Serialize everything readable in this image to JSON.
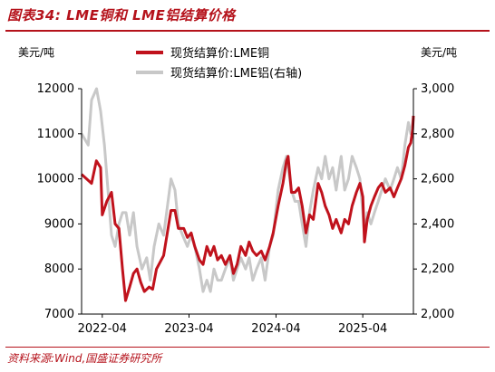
{
  "figure": {
    "title": "图表34:  LME铜和 LME铝结算价格",
    "source": "资料来源:Wind,国盛证券研究所"
  },
  "colors": {
    "copper": "#c0121c",
    "aluminum": "#c8c8c8",
    "accent": "#b5121b"
  },
  "chart_data": {
    "type": "line",
    "ylabel_left": "美元/吨",
    "ylabel_right": "美元/吨",
    "x_ticks": [
      "2022-04",
      "2023-04",
      "2024-04",
      "2025-04"
    ],
    "xlim": [
      "2022-01-04",
      "2025-10-31"
    ],
    "ylim_left": [
      7000,
      12000
    ],
    "yticks_left": [
      "7000",
      "8000",
      "9000",
      "10000",
      "11000",
      "12000"
    ],
    "ylim_right": [
      2000,
      3000
    ],
    "yticks_right": [
      "2,000",
      "2,200",
      "2,400",
      "2,600",
      "2,800",
      "3,000"
    ],
    "legend_position": "top",
    "series": [
      {
        "name": "现货结算价:LME铜",
        "axis": "left",
        "color": "#c0121c",
        "points": [
          [
            "2022-01-04",
            10100
          ],
          [
            "2022-02-15",
            9900
          ],
          [
            "2022-03-07",
            10400
          ],
          [
            "2022-03-25",
            10250
          ],
          [
            "2022-04-01",
            9200
          ],
          [
            "2022-04-20",
            9500
          ],
          [
            "2022-05-10",
            9700
          ],
          [
            "2022-05-25",
            9000
          ],
          [
            "2022-06-10",
            8900
          ],
          [
            "2022-06-25",
            8000
          ],
          [
            "2022-07-08",
            7300
          ],
          [
            "2022-07-25",
            7600
          ],
          [
            "2022-08-10",
            7900
          ],
          [
            "2022-08-25",
            8000
          ],
          [
            "2022-09-10",
            7700
          ],
          [
            "2022-09-25",
            7500
          ],
          [
            "2022-10-15",
            7600
          ],
          [
            "2022-10-30",
            7550
          ],
          [
            "2022-11-15",
            8000
          ],
          [
            "2022-12-15",
            8300
          ],
          [
            "2023-01-15",
            9300
          ],
          [
            "2023-02-01",
            9300
          ],
          [
            "2023-02-15",
            8900
          ],
          [
            "2023-03-10",
            8900
          ],
          [
            "2023-03-25",
            8700
          ],
          [
            "2023-04-10",
            8800
          ],
          [
            "2023-04-25",
            8500
          ],
          [
            "2023-05-15",
            8200
          ],
          [
            "2023-05-30",
            8100
          ],
          [
            "2023-06-15",
            8500
          ],
          [
            "2023-06-30",
            8300
          ],
          [
            "2023-07-15",
            8500
          ],
          [
            "2023-07-30",
            8200
          ],
          [
            "2023-08-15",
            8300
          ],
          [
            "2023-09-01",
            8100
          ],
          [
            "2023-09-20",
            8300
          ],
          [
            "2023-10-05",
            7900
          ],
          [
            "2023-10-20",
            8100
          ],
          [
            "2023-11-05",
            8500
          ],
          [
            "2023-11-25",
            8300
          ],
          [
            "2023-12-10",
            8600
          ],
          [
            "2023-12-25",
            8400
          ],
          [
            "2024-01-10",
            8300
          ],
          [
            "2024-01-30",
            8400
          ],
          [
            "2024-02-15",
            8200
          ],
          [
            "2024-03-05",
            8500
          ],
          [
            "2024-03-20",
            8800
          ],
          [
            "2024-04-10",
            9400
          ],
          [
            "2024-04-30",
            9900
          ],
          [
            "2024-05-15",
            10400
          ],
          [
            "2024-05-22",
            10500
          ],
          [
            "2024-06-05",
            9700
          ],
          [
            "2024-06-20",
            9700
          ],
          [
            "2024-07-05",
            9800
          ],
          [
            "2024-07-20",
            9400
          ],
          [
            "2024-08-05",
            8800
          ],
          [
            "2024-08-20",
            9200
          ],
          [
            "2024-09-05",
            9100
          ],
          [
            "2024-09-25",
            9900
          ],
          [
            "2024-10-10",
            9700
          ],
          [
            "2024-10-25",
            9400
          ],
          [
            "2024-11-10",
            9200
          ],
          [
            "2024-11-25",
            8900
          ],
          [
            "2024-12-10",
            9100
          ],
          [
            "2024-12-31",
            8800
          ],
          [
            "2025-01-15",
            9100
          ],
          [
            "2025-01-31",
            9000
          ],
          [
            "2025-02-15",
            9400
          ],
          [
            "2025-03-05",
            9700
          ],
          [
            "2025-03-20",
            9900
          ],
          [
            "2025-04-01",
            9600
          ],
          [
            "2025-04-08",
            8600
          ],
          [
            "2025-04-20",
            9100
          ],
          [
            "2025-05-05",
            9400
          ],
          [
            "2025-05-20",
            9600
          ],
          [
            "2025-06-05",
            9800
          ],
          [
            "2025-06-20",
            9900
          ],
          [
            "2025-07-05",
            9700
          ],
          [
            "2025-07-25",
            9800
          ],
          [
            "2025-08-10",
            9600
          ],
          [
            "2025-08-25",
            9800
          ],
          [
            "2025-09-10",
            10000
          ],
          [
            "2025-09-25",
            10300
          ],
          [
            "2025-10-10",
            10700
          ],
          [
            "2025-10-20",
            10800
          ],
          [
            "2025-10-28",
            11100
          ],
          [
            "2025-10-31",
            11400
          ]
        ]
      },
      {
        "name": "现货结算价:LME铝(右轴)",
        "axis": "right",
        "color": "#c8c8c8",
        "points": [
          [
            "2022-01-04",
            2800
          ],
          [
            "2022-02-01",
            2750
          ],
          [
            "2022-02-15",
            2950
          ],
          [
            "2022-03-08",
            3000
          ],
          [
            "2022-03-25",
            2900
          ],
          [
            "2022-04-10",
            2750
          ],
          [
            "2022-04-25",
            2550
          ],
          [
            "2022-05-10",
            2350
          ],
          [
            "2022-05-25",
            2300
          ],
          [
            "2022-06-10",
            2400
          ],
          [
            "2022-06-25",
            2450
          ],
          [
            "2022-07-10",
            2450
          ],
          [
            "2022-07-25",
            2350
          ],
          [
            "2022-08-10",
            2450
          ],
          [
            "2022-08-25",
            2300
          ],
          [
            "2022-09-15",
            2200
          ],
          [
            "2022-10-05",
            2250
          ],
          [
            "2022-10-20",
            2150
          ],
          [
            "2022-11-05",
            2300
          ],
          [
            "2022-11-25",
            2400
          ],
          [
            "2022-12-15",
            2350
          ],
          [
            "2023-01-15",
            2600
          ],
          [
            "2023-02-01",
            2550
          ],
          [
            "2023-02-15",
            2400
          ],
          [
            "2023-03-05",
            2350
          ],
          [
            "2023-03-25",
            2300
          ],
          [
            "2023-04-10",
            2350
          ],
          [
            "2023-04-25",
            2300
          ],
          [
            "2023-05-15",
            2200
          ],
          [
            "2023-05-30",
            2100
          ],
          [
            "2023-06-15",
            2150
          ],
          [
            "2023-06-30",
            2100
          ],
          [
            "2023-07-15",
            2200
          ],
          [
            "2023-07-30",
            2150
          ],
          [
            "2023-08-15",
            2150
          ],
          [
            "2023-09-01",
            2200
          ],
          [
            "2023-09-20",
            2250
          ],
          [
            "2023-10-05",
            2150
          ],
          [
            "2023-10-20",
            2200
          ],
          [
            "2023-11-05",
            2250
          ],
          [
            "2023-11-25",
            2200
          ],
          [
            "2023-12-10",
            2250
          ],
          [
            "2023-12-25",
            2150
          ],
          [
            "2024-01-10",
            2200
          ],
          [
            "2024-01-30",
            2250
          ],
          [
            "2024-02-15",
            2150
          ],
          [
            "2024-03-05",
            2300
          ],
          [
            "2024-03-20",
            2350
          ],
          [
            "2024-04-10",
            2550
          ],
          [
            "2024-04-30",
            2650
          ],
          [
            "2024-05-15",
            2700
          ],
          [
            "2024-06-05",
            2550
          ],
          [
            "2024-06-20",
            2500
          ],
          [
            "2024-07-05",
            2500
          ],
          [
            "2024-07-20",
            2400
          ],
          [
            "2024-08-05",
            2300
          ],
          [
            "2024-08-20",
            2450
          ],
          [
            "2024-09-05",
            2550
          ],
          [
            "2024-09-25",
            2650
          ],
          [
            "2024-10-10",
            2600
          ],
          [
            "2024-10-25",
            2700
          ],
          [
            "2024-11-10",
            2600
          ],
          [
            "2024-11-25",
            2650
          ],
          [
            "2024-12-10",
            2550
          ],
          [
            "2024-12-31",
            2700
          ],
          [
            "2025-01-15",
            2550
          ],
          [
            "2025-01-31",
            2600
          ],
          [
            "2025-02-15",
            2700
          ],
          [
            "2025-03-05",
            2650
          ],
          [
            "2025-03-20",
            2600
          ],
          [
            "2025-04-01",
            2450
          ],
          [
            "2025-04-08",
            2350
          ],
          [
            "2025-04-20",
            2450
          ],
          [
            "2025-05-05",
            2400
          ],
          [
            "2025-05-20",
            2450
          ],
          [
            "2025-06-05",
            2500
          ],
          [
            "2025-06-20",
            2550
          ],
          [
            "2025-07-05",
            2600
          ],
          [
            "2025-07-25",
            2550
          ],
          [
            "2025-08-10",
            2600
          ],
          [
            "2025-08-25",
            2650
          ],
          [
            "2025-09-10",
            2600
          ],
          [
            "2025-09-25",
            2750
          ],
          [
            "2025-10-10",
            2850
          ],
          [
            "2025-10-20",
            2800
          ],
          [
            "2025-10-28",
            2850
          ],
          [
            "2025-10-31",
            2870
          ]
        ]
      }
    ]
  }
}
